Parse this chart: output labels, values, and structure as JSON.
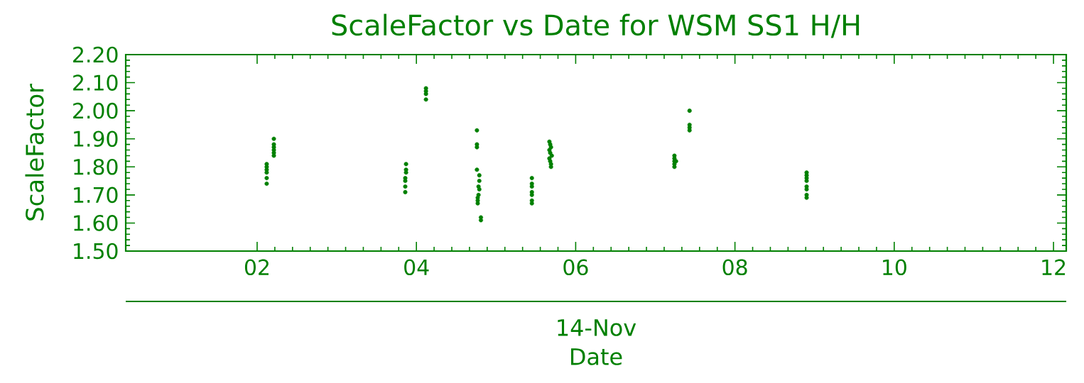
{
  "chart_data": {
    "type": "scatter",
    "title": "ScaleFactor vs Date for WSM SS1 H/H",
    "xlabel": "Date",
    "ylabel": "ScaleFactor",
    "annotations": [
      "14-Nov"
    ],
    "xlim": [
      0.35,
      12.16
    ],
    "ylim": [
      1.5,
      2.2
    ],
    "xticks": [
      {
        "value": 2,
        "label": "02"
      },
      {
        "value": 4,
        "label": "04"
      },
      {
        "value": 6,
        "label": "06"
      },
      {
        "value": 8,
        "label": "08"
      },
      10,
      12
    ],
    "yticks": [
      {
        "value": 1.5,
        "label": "1.50"
      },
      {
        "value": 1.6,
        "label": "1.60"
      },
      {
        "value": 1.7,
        "label": "1.70"
      },
      {
        "value": 1.8,
        "label": "1.80"
      },
      {
        "value": 1.9,
        "label": "1.90"
      },
      {
        "value": 2.0,
        "label": "2.00"
      },
      {
        "value": 2.1,
        "label": "2.10"
      },
      {
        "value": 2.2,
        "label": "2.20"
      }
    ],
    "grid": false,
    "series": [
      {
        "color": "#008000",
        "x": [
          2.12,
          2.12,
          2.12,
          2.12,
          2.12,
          2.12,
          2.21,
          2.21,
          2.21,
          2.21,
          2.21,
          2.21,
          3.87,
          3.87,
          3.87,
          3.86,
          3.86,
          3.86,
          3.86,
          4.12,
          4.12,
          4.12,
          4.12,
          4.76,
          4.76,
          4.76,
          4.76,
          4.79,
          4.79,
          4.78,
          4.79,
          4.78,
          4.77,
          4.77,
          4.77,
          4.81,
          4.81,
          5.45,
          5.45,
          5.45,
          5.45,
          5.45,
          5.45,
          5.45,
          5.67,
          5.68,
          5.69,
          5.67,
          5.68,
          5.7,
          5.67,
          5.68,
          5.69,
          5.69,
          7.24,
          7.24,
          7.24,
          7.24,
          7.24,
          7.26,
          7.43,
          7.43,
          7.43,
          7.43,
          8.9,
          8.9,
          8.9,
          8.9,
          8.9,
          8.9,
          8.9,
          8.9
        ],
        "values": [
          1.81,
          1.8,
          1.79,
          1.78,
          1.76,
          1.74,
          1.9,
          1.88,
          1.87,
          1.86,
          1.85,
          1.84,
          1.81,
          1.79,
          1.78,
          1.76,
          1.75,
          1.73,
          1.71,
          2.08,
          2.07,
          2.06,
          2.04,
          1.93,
          1.88,
          1.87,
          1.79,
          1.77,
          1.75,
          1.73,
          1.72,
          1.7,
          1.69,
          1.68,
          1.67,
          1.62,
          1.61,
          1.76,
          1.74,
          1.73,
          1.71,
          1.7,
          1.68,
          1.67,
          1.89,
          1.88,
          1.87,
          1.86,
          1.85,
          1.84,
          1.83,
          1.82,
          1.81,
          1.8,
          1.84,
          1.83,
          1.82,
          1.81,
          1.8,
          1.82,
          2.0,
          1.95,
          1.94,
          1.93,
          1.78,
          1.77,
          1.76,
          1.75,
          1.73,
          1.72,
          1.7,
          1.69
        ]
      }
    ]
  }
}
